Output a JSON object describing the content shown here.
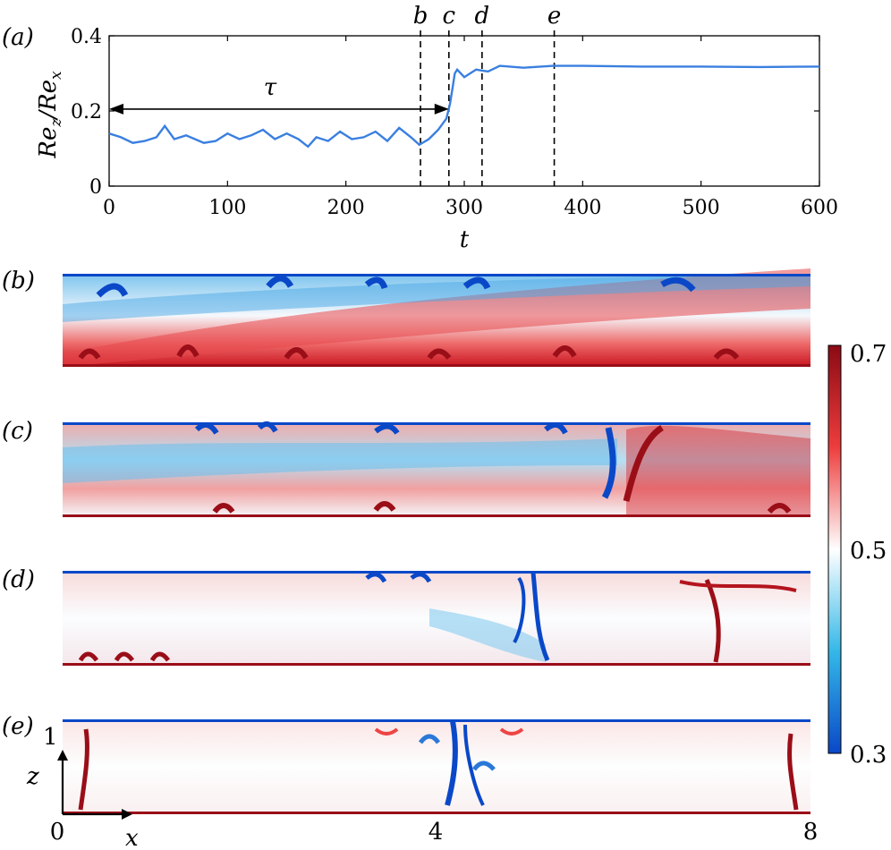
{
  "chart_data": [
    {
      "panel_label": "(a)",
      "type": "line",
      "xlabel": "t",
      "ylabel": "Re_z/Re_x",
      "xlim": [
        0,
        600
      ],
      "ylim": [
        0,
        0.4
      ],
      "x_ticks": [
        "0",
        "100",
        "200",
        "300",
        "400",
        "500",
        "600"
      ],
      "y_ticks": [
        "0",
        "0.2",
        "0.4"
      ],
      "color": "#3a7fe0",
      "series": [
        {
          "x": [
            0,
            10,
            20,
            30,
            40,
            47,
            55,
            65,
            80,
            90,
            100,
            110,
            120,
            130,
            140,
            150,
            160,
            168,
            175,
            185,
            195,
            205,
            215,
            225,
            235,
            245,
            255,
            262,
            270,
            278,
            285,
            288,
            290,
            292,
            294,
            300,
            310,
            320,
            330,
            350,
            375,
            400,
            450,
            500,
            550,
            600
          ],
          "y": [
            0.14,
            0.13,
            0.115,
            0.12,
            0.13,
            0.16,
            0.125,
            0.135,
            0.115,
            0.12,
            0.14,
            0.125,
            0.135,
            0.15,
            0.125,
            0.14,
            0.125,
            0.105,
            0.13,
            0.12,
            0.145,
            0.125,
            0.13,
            0.145,
            0.12,
            0.155,
            0.13,
            0.11,
            0.125,
            0.15,
            0.18,
            0.22,
            0.26,
            0.3,
            0.31,
            0.29,
            0.31,
            0.305,
            0.32,
            0.315,
            0.32,
            0.32,
            0.318,
            0.318,
            0.317,
            0.318
          ]
        }
      ],
      "vlines": [
        {
          "label": "b",
          "x": 263
        },
        {
          "label": "c",
          "x": 287
        },
        {
          "label": "d",
          "x": 315
        },
        {
          "label": "e",
          "x": 376
        }
      ],
      "annotation": {
        "label": "τ",
        "x_start": 0,
        "x_end": 287,
        "y": 0.205
      }
    },
    {
      "type": "heatmap",
      "panels": [
        "(b)",
        "(c)",
        "(d)",
        "(e)"
      ],
      "colorbar": {
        "min": 0.3,
        "max": 0.7,
        "ticks": [
          "0.7",
          "0.5",
          "0.3"
        ],
        "low_color": "#0a48c8",
        "mid_color": "#ffffff",
        "high_color": "#8b0a14"
      },
      "xlabel": "x",
      "ylabel": "z",
      "x_ticks": [
        "0",
        "4",
        "8"
      ],
      "z_tick": "1"
    }
  ]
}
